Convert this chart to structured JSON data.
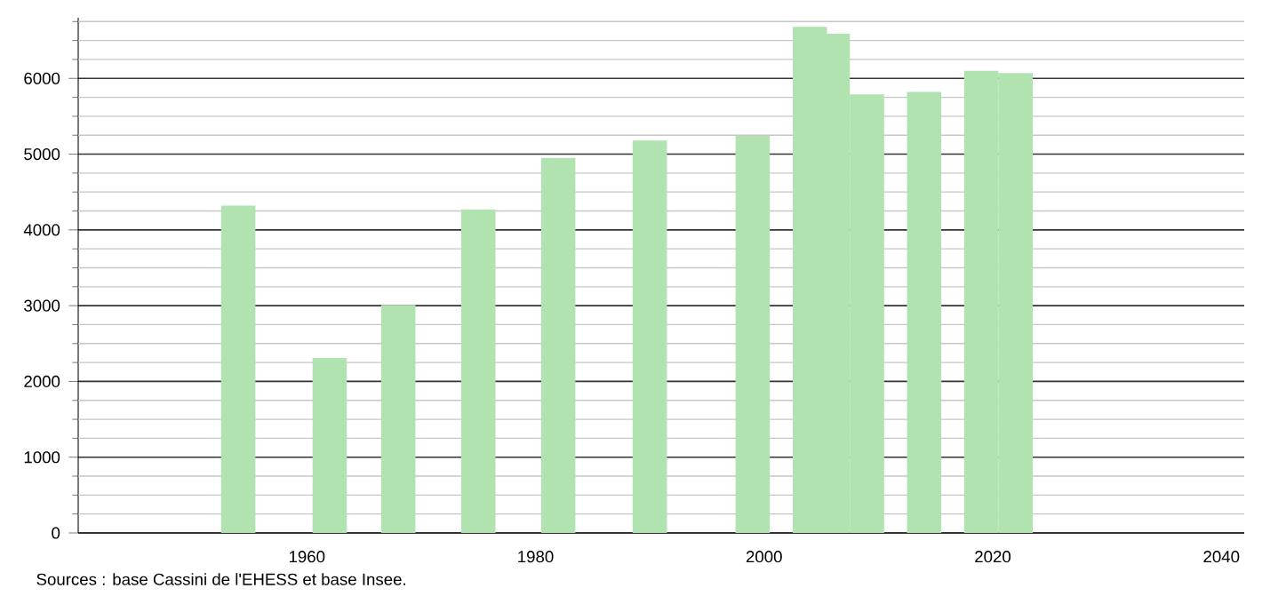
{
  "chart_data": {
    "type": "bar",
    "x": [
      1954,
      1962,
      1968,
      1975,
      1982,
      1990,
      1999,
      2004,
      2006,
      2009,
      2014,
      2019,
      2022
    ],
    "values": [
      4320,
      2310,
      3010,
      4270,
      4950,
      5180,
      5240,
      6680,
      6590,
      5790,
      5820,
      6100,
      6070
    ],
    "color": "#b0e3b0",
    "xlim": [
      1940,
      2042
    ],
    "ylim": [
      0,
      6800
    ],
    "xticks": [
      1960,
      1980,
      2000,
      2020,
      2040
    ],
    "yticks": [
      0,
      {
        "value": 250,
        "label": null
      },
      {
        "value": 500,
        "label": null
      },
      {
        "value": 750,
        "label": null
      },
      1000,
      {
        "value": 1250,
        "label": null
      },
      {
        "value": 1500,
        "label": null
      },
      {
        "value": 1750,
        "label": null
      },
      2000,
      {
        "value": 2250,
        "label": null
      },
      {
        "value": 2500,
        "label": null
      },
      {
        "value": 2750,
        "label": null
      },
      3000,
      {
        "value": 3250,
        "label": null
      },
      {
        "value": 3500,
        "label": null
      },
      {
        "value": 3750,
        "label": null
      },
      4000,
      {
        "value": 4250,
        "label": null
      },
      {
        "value": 4500,
        "label": null
      },
      {
        "value": 4750,
        "label": null
      },
      5000,
      {
        "value": 5250,
        "label": null
      },
      {
        "value": 5500,
        "label": null
      },
      {
        "value": 5750,
        "label": null
      },
      6000,
      {
        "value": 6250,
        "label": null
      },
      {
        "value": 6500,
        "label": null
      },
      {
        "value": 6750,
        "label": null
      }
    ],
    "grid": "y",
    "annotations": [
      "Sources : base Cassini de l'EHESS et base Insee."
    ]
  }
}
